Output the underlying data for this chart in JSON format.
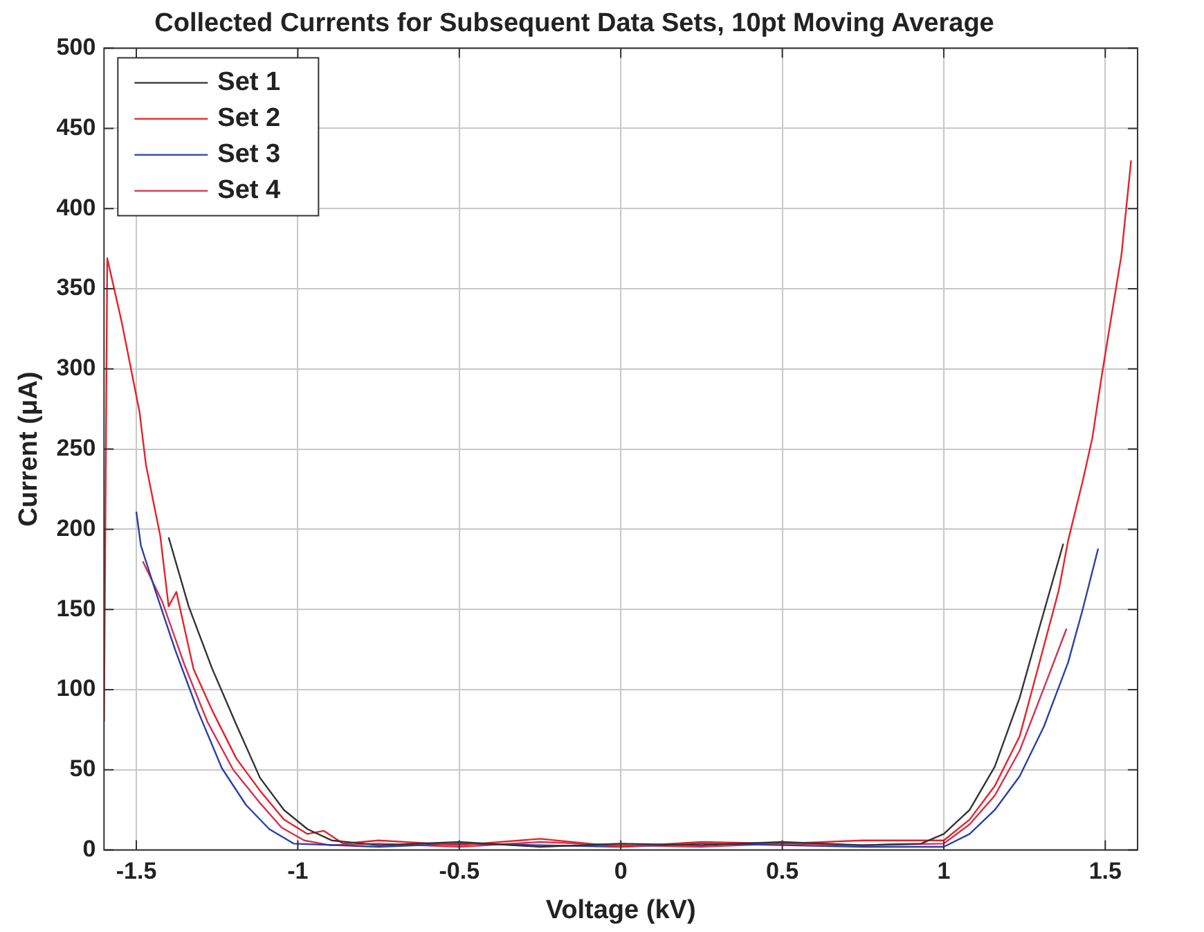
{
  "chart_data": {
    "type": "line",
    "title": "Collected Currents for Subsequent Data Sets, 10pt Moving Average",
    "xlabel": "Voltage (kV)",
    "ylabel": "Current (μA)",
    "xlim": [
      -1.6,
      1.6
    ],
    "xticks": [
      -1.5,
      -1,
      -0.5,
      0,
      0.5,
      1,
      1.5
    ],
    "ylim": [
      0,
      500
    ],
    "yticks": [
      0,
      50,
      100,
      150,
      200,
      250,
      300,
      350,
      400,
      450,
      500
    ],
    "grid": true,
    "legend": "top left",
    "marker": "none",
    "line_style": "solid",
    "series": [
      {
        "name": "Set 1",
        "color": "#333333",
        "x": [
          -1.4,
          -1.338,
          -1.265,
          -1.19,
          -1.117,
          -1.043,
          -0.97,
          -0.895,
          -0.75,
          -0.5,
          -0.25,
          0,
          0.25,
          0.5,
          0.75,
          0.93,
          1.0,
          1.08,
          1.158,
          1.235,
          1.295,
          1.37
        ],
        "values": [
          195,
          152,
          113,
          78,
          45,
          25,
          13,
          6,
          3,
          5,
          2,
          4,
          3,
          5,
          3,
          4,
          10,
          25,
          52,
          95,
          138,
          191
        ]
      },
      {
        "name": "Set 2",
        "color": "#e8202a",
        "x": [
          -1.6,
          -1.59,
          -1.545,
          -1.49,
          -1.47,
          -1.426,
          -1.4,
          -1.376,
          -1.323,
          -1.265,
          -1.19,
          -1.117,
          -1.043,
          -0.97,
          -0.92,
          -0.86,
          -0.75,
          -0.5,
          -0.25,
          0,
          0.25,
          0.5,
          0.75,
          1.0,
          1.08,
          1.158,
          1.235,
          1.295,
          1.356,
          1.385,
          1.43,
          1.46,
          1.49,
          1.55,
          1.58
        ],
        "values": [
          80,
          369,
          329,
          273,
          240,
          196,
          152,
          161,
          113,
          87,
          57,
          37,
          19,
          10,
          12,
          4,
          6,
          3,
          7,
          2,
          5,
          4,
          6,
          6,
          19,
          40,
          71,
          116,
          162,
          193,
          230,
          257,
          297,
          371,
          430
        ]
      },
      {
        "name": "Set 3",
        "color": "#2a3fa8",
        "x": [
          -1.5,
          -1.486,
          -1.44,
          -1.38,
          -1.31,
          -1.235,
          -1.16,
          -1.088,
          -1.013,
          -0.75,
          -0.5,
          -0.25,
          0,
          0.25,
          0.5,
          0.75,
          1.0,
          1.08,
          1.158,
          1.235,
          1.31,
          1.385,
          1.43,
          1.478
        ],
        "values": [
          211,
          190,
          161,
          125,
          87,
          51,
          28,
          13,
          4,
          2,
          4,
          3,
          2,
          4,
          3,
          2,
          2,
          10,
          25,
          46,
          77,
          117,
          150,
          188
        ]
      },
      {
        "name": "Set 4",
        "color": "#d6304f",
        "x": [
          -1.48,
          -1.42,
          -1.35,
          -1.28,
          -1.2,
          -1.12,
          -1.05,
          -0.98,
          -0.9,
          -0.75,
          -0.5,
          -0.25,
          0,
          0.25,
          0.5,
          0.75,
          1.0,
          1.08,
          1.158,
          1.235,
          1.31,
          1.38
        ],
        "values": [
          180,
          155,
          115,
          80,
          50,
          30,
          14,
          6,
          3,
          4,
          2,
          5,
          3,
          2,
          4,
          3,
          4,
          16,
          34,
          62,
          101,
          138
        ]
      }
    ]
  }
}
